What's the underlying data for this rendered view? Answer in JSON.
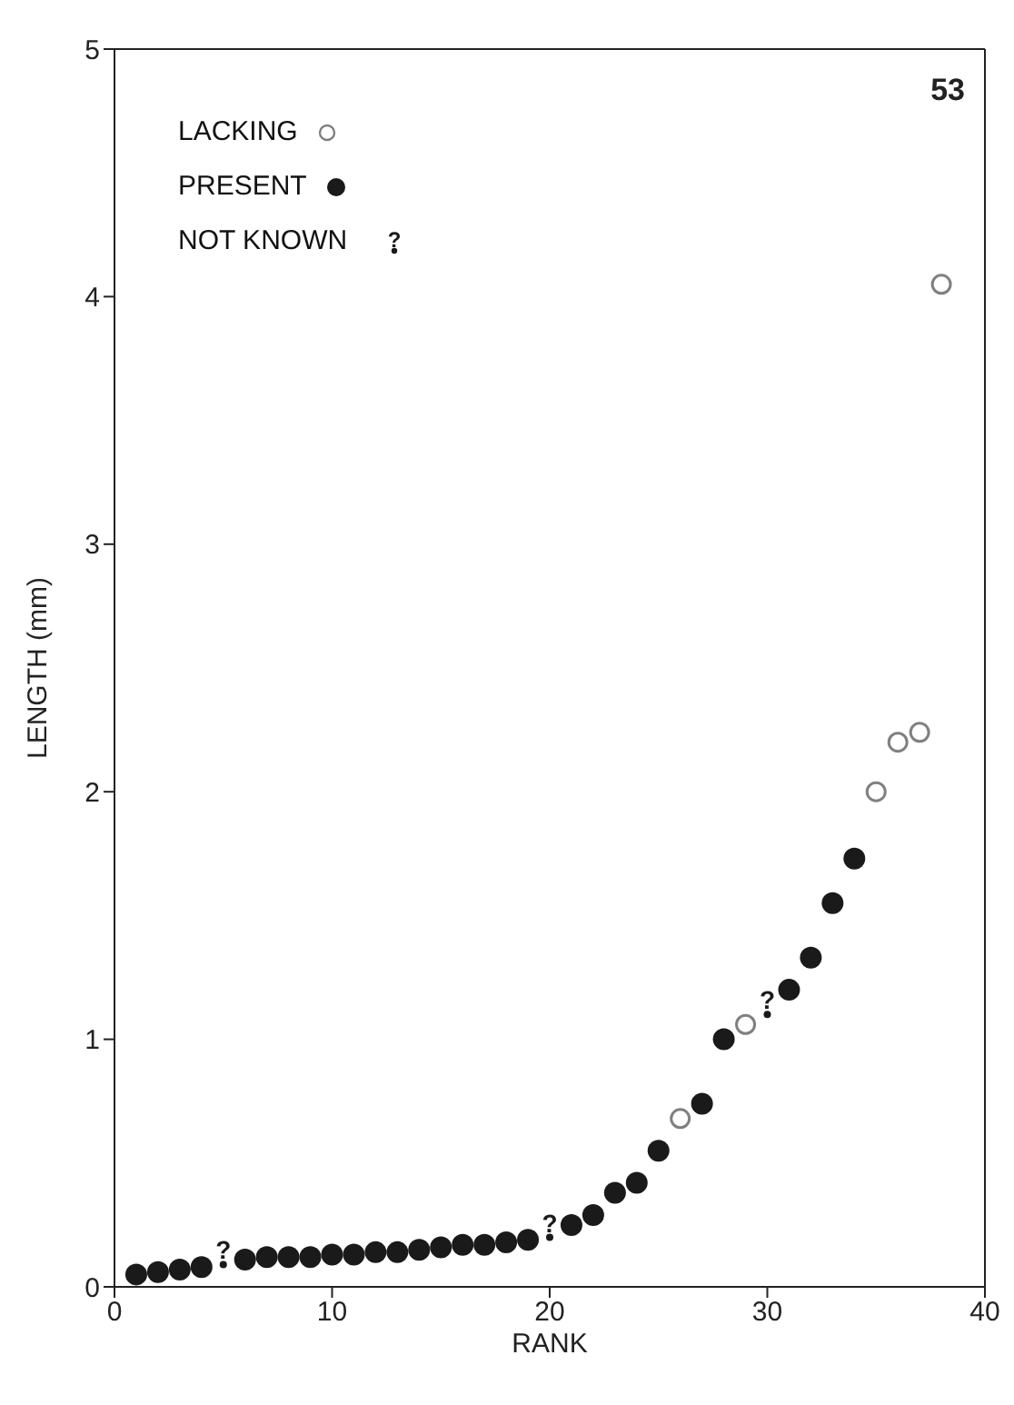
{
  "chart_data": {
    "type": "scatter",
    "xlabel": "RANK",
    "ylabel": "LENGTH (mm)",
    "annotations": [
      "53"
    ],
    "xlim": [
      0,
      40
    ],
    "xticks": [
      0,
      10,
      20,
      30,
      40
    ],
    "ylim": [
      0,
      5
    ],
    "yticks": [
      0,
      1,
      2,
      3,
      4,
      5
    ],
    "grid": false,
    "legend": "top left",
    "series": [
      {
        "name": "LACKING",
        "color": "#808080",
        "marker": "circle",
        "x": [
          26,
          29,
          35,
          36,
          37,
          38
        ],
        "values": [
          0.68,
          1.06,
          2.0,
          2.2,
          2.24,
          4.05
        ]
      },
      {
        "name": "PRESENT",
        "color": "#1a1a1a",
        "marker": "circle",
        "x": [
          1,
          2,
          3,
          4,
          6,
          7,
          8,
          9,
          10,
          11,
          12,
          13,
          14,
          15,
          16,
          17,
          18,
          19,
          21,
          22,
          23,
          24,
          25,
          27,
          28,
          31,
          32,
          33,
          34
        ],
        "values": [
          0.05,
          0.06,
          0.07,
          0.08,
          0.11,
          0.12,
          0.12,
          0.12,
          0.13,
          0.13,
          0.14,
          0.14,
          0.15,
          0.16,
          0.17,
          0.17,
          0.18,
          0.19,
          0.25,
          0.29,
          0.38,
          0.42,
          0.55,
          0.74,
          1.0,
          1.2,
          1.33,
          1.55,
          1.73
        ]
      },
      {
        "name": "NOT KNOWN",
        "color": "#1a1a1a",
        "marker": "circle",
        "x": [
          5,
          20,
          30
        ],
        "values": [
          0.09,
          0.2,
          1.1
        ],
        "value_labels": [
          "?",
          "?",
          "?"
        ]
      }
    ]
  }
}
